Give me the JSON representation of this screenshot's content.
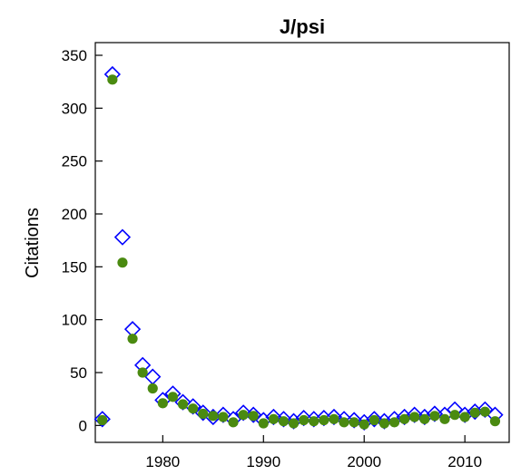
{
  "chart_data": {
    "type": "scatter",
    "title": "J/psi",
    "xlabel": "",
    "ylabel": "Citations",
    "xlim": [
      1973.3,
      2014.4
    ],
    "ylim": [
      -16,
      362
    ],
    "xticks": [
      1980,
      1990,
      2000,
      2010
    ],
    "yticks": [
      0,
      50,
      100,
      150,
      200,
      250,
      300,
      350
    ],
    "grid": false,
    "legend": "none",
    "series": [
      {
        "marker": "diamond-open",
        "color": "#0000ff",
        "x": [
          1974,
          1975,
          1976,
          1977,
          1978,
          1979,
          1980,
          1981,
          1982,
          1983,
          1984,
          1985,
          1986,
          1987,
          1988,
          1989,
          1990,
          1991,
          1992,
          1993,
          1994,
          1995,
          1996,
          1997,
          1998,
          1999,
          2000,
          2001,
          2002,
          2003,
          2004,
          2005,
          2006,
          2007,
          2008,
          2009,
          2010,
          2011,
          2012,
          2013
        ],
        "y": [
          6,
          332,
          178,
          91,
          57,
          46,
          24,
          30,
          22,
          18,
          12,
          8,
          10,
          6,
          12,
          10,
          5,
          8,
          6,
          4,
          7,
          6,
          7,
          8,
          6,
          5,
          3,
          6,
          4,
          6,
          8,
          10,
          8,
          11,
          10,
          15,
          10,
          13,
          15,
          10
        ]
      },
      {
        "marker": "circle-filled",
        "color": "#4a8a10",
        "x": [
          1974,
          1975,
          1976,
          1977,
          1978,
          1979,
          1980,
          1981,
          1982,
          1983,
          1984,
          1985,
          1986,
          1987,
          1988,
          1989,
          1990,
          1991,
          1992,
          1993,
          1994,
          1995,
          1996,
          1997,
          1998,
          1999,
          2000,
          2001,
          2002,
          2003,
          2004,
          2005,
          2006,
          2007,
          2008,
          2009,
          2010,
          2011,
          2012,
          2013
        ],
        "y": [
          5,
          327,
          154,
          82,
          50,
          35,
          21,
          27,
          20,
          16,
          11,
          9,
          8,
          3,
          10,
          9,
          2,
          6,
          4,
          2,
          5,
          4,
          5,
          6,
          3,
          3,
          1,
          5,
          2,
          3,
          6,
          8,
          6,
          9,
          6,
          10,
          8,
          12,
          13,
          4
        ]
      }
    ]
  }
}
